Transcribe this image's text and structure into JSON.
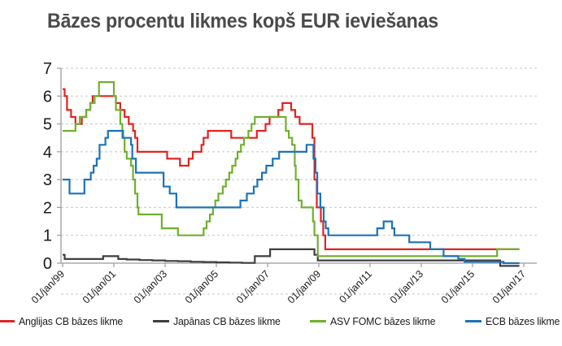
{
  "title": "Bāzes procentu likmes kopš EUR ieviešanas",
  "colors": {
    "england": "#e02421",
    "japan": "#3f3f3f",
    "us": "#70b02e",
    "ecb": "#1d72b8",
    "grid": "#c8c8c8",
    "axis": "#9b9b9b",
    "tick_label": "#1a1a1a",
    "title": "#4a4a4a"
  },
  "chart_data": {
    "type": "line",
    "step": true,
    "title": "Bāzes procentu likmes kopš EUR ieviešanas",
    "xlabel": "",
    "ylabel": "",
    "grid": "horizontal-dashed",
    "legend_position": "bottom",
    "x_axis": {
      "tick_labels": [
        "01/jan/99",
        "01/jan/01",
        "01/jan/03",
        "01/jan/05",
        "01/jan/07",
        "01/jan/09",
        "01/jan/11",
        "01/jan/13",
        "01/jan/15",
        "01/jan/17"
      ],
      "tick_years": [
        1999,
        2001,
        2003,
        2005,
        2007,
        2009,
        2011,
        2013,
        2015,
        2017
      ],
      "range": [
        1999,
        2017.5
      ]
    },
    "y_axis": {
      "ticks": [
        0,
        1,
        2,
        3,
        4,
        5,
        6,
        7
      ],
      "range": [
        0,
        7
      ]
    },
    "x_end": 2016.83,
    "series": [
      {
        "name": "Anglijas CB bāzes likme",
        "color_key": "england",
        "color": "#e02421",
        "points": [
          [
            1999.0,
            6.25
          ],
          [
            1999.08,
            6.0
          ],
          [
            1999.17,
            5.5
          ],
          [
            1999.33,
            5.25
          ],
          [
            1999.5,
            5.0
          ],
          [
            1999.75,
            5.25
          ],
          [
            1999.92,
            5.5
          ],
          [
            2000.08,
            5.75
          ],
          [
            2000.17,
            6.0
          ],
          [
            2001.08,
            5.75
          ],
          [
            2001.25,
            5.5
          ],
          [
            2001.42,
            5.25
          ],
          [
            2001.58,
            5.0
          ],
          [
            2001.75,
            4.75
          ],
          [
            2001.83,
            4.5
          ],
          [
            2001.92,
            4.0
          ],
          [
            2003.08,
            3.75
          ],
          [
            2003.58,
            3.5
          ],
          [
            2003.92,
            3.75
          ],
          [
            2004.08,
            4.0
          ],
          [
            2004.42,
            4.25
          ],
          [
            2004.5,
            4.5
          ],
          [
            2004.67,
            4.75
          ],
          [
            2005.58,
            4.5
          ],
          [
            2006.58,
            4.75
          ],
          [
            2006.92,
            5.0
          ],
          [
            2007.08,
            5.25
          ],
          [
            2007.42,
            5.5
          ],
          [
            2007.58,
            5.75
          ],
          [
            2007.92,
            5.5
          ],
          [
            2008.08,
            5.25
          ],
          [
            2008.25,
            5.0
          ],
          [
            2008.75,
            4.5
          ],
          [
            2008.83,
            3.0
          ],
          [
            2008.92,
            2.0
          ],
          [
            2009.08,
            1.5
          ],
          [
            2009.17,
            1.0
          ],
          [
            2009.25,
            0.5
          ]
        ]
      },
      {
        "name": "Japānas CB bāzes likme",
        "color_key": "japan",
        "color": "#3f3f3f",
        "points": [
          [
            1999.0,
            0.3
          ],
          [
            1999.08,
            0.15
          ],
          [
            2000.58,
            0.25
          ],
          [
            2001.17,
            0.15
          ],
          [
            2001.5,
            0.13
          ],
          [
            2002.0,
            0.11
          ],
          [
            2002.5,
            0.1
          ],
          [
            2003.0,
            0.08
          ],
          [
            2003.5,
            0.07
          ],
          [
            2004.0,
            0.05
          ],
          [
            2004.5,
            0.04
          ],
          [
            2005.0,
            0.03
          ],
          [
            2005.5,
            0.02
          ],
          [
            2006.0,
            0.01
          ],
          [
            2006.5,
            0.25
          ],
          [
            2007.1,
            0.5
          ],
          [
            2008.83,
            0.3
          ],
          [
            2008.96,
            0.1
          ],
          [
            2016.08,
            -0.1
          ]
        ]
      },
      {
        "name": "ASV FOMC bāzes likme",
        "color_key": "us",
        "color": "#70b02e",
        "points": [
          [
            1999.0,
            4.75
          ],
          [
            1999.5,
            5.0
          ],
          [
            1999.67,
            5.25
          ],
          [
            1999.92,
            5.5
          ],
          [
            2000.08,
            5.75
          ],
          [
            2000.25,
            6.0
          ],
          [
            2000.42,
            6.5
          ],
          [
            2001.0,
            6.0
          ],
          [
            2001.08,
            5.5
          ],
          [
            2001.25,
            5.0
          ],
          [
            2001.33,
            4.5
          ],
          [
            2001.42,
            4.0
          ],
          [
            2001.5,
            3.75
          ],
          [
            2001.67,
            3.5
          ],
          [
            2001.75,
            3.0
          ],
          [
            2001.83,
            2.5
          ],
          [
            2001.92,
            2.0
          ],
          [
            2001.96,
            1.75
          ],
          [
            2002.87,
            1.25
          ],
          [
            2003.5,
            1.0
          ],
          [
            2004.5,
            1.25
          ],
          [
            2004.62,
            1.5
          ],
          [
            2004.75,
            1.75
          ],
          [
            2004.87,
            2.0
          ],
          [
            2004.96,
            2.25
          ],
          [
            2005.08,
            2.5
          ],
          [
            2005.25,
            2.75
          ],
          [
            2005.37,
            3.0
          ],
          [
            2005.5,
            3.25
          ],
          [
            2005.62,
            3.5
          ],
          [
            2005.75,
            3.75
          ],
          [
            2005.83,
            4.0
          ],
          [
            2005.96,
            4.25
          ],
          [
            2006.08,
            4.5
          ],
          [
            2006.25,
            4.75
          ],
          [
            2006.37,
            5.0
          ],
          [
            2006.5,
            5.25
          ],
          [
            2007.71,
            4.75
          ],
          [
            2007.83,
            4.5
          ],
          [
            2007.96,
            4.25
          ],
          [
            2008.06,
            3.5
          ],
          [
            2008.1,
            3.0
          ],
          [
            2008.21,
            2.25
          ],
          [
            2008.33,
            2.0
          ],
          [
            2008.77,
            1.5
          ],
          [
            2008.83,
            1.0
          ],
          [
            2008.96,
            0.25
          ],
          [
            2015.96,
            0.5
          ]
        ]
      },
      {
        "name": "ECB bāzes likme",
        "color_key": "ecb",
        "color": "#1d72b8",
        "points": [
          [
            1999.0,
            3.0
          ],
          [
            1999.27,
            2.5
          ],
          [
            1999.85,
            3.0
          ],
          [
            2000.1,
            3.25
          ],
          [
            2000.21,
            3.5
          ],
          [
            2000.33,
            3.75
          ],
          [
            2000.44,
            4.25
          ],
          [
            2000.67,
            4.5
          ],
          [
            2000.77,
            4.75
          ],
          [
            2001.36,
            4.5
          ],
          [
            2001.67,
            4.25
          ],
          [
            2001.72,
            3.75
          ],
          [
            2001.86,
            3.25
          ],
          [
            2002.94,
            2.75
          ],
          [
            2003.18,
            2.5
          ],
          [
            2003.44,
            2.0
          ],
          [
            2005.94,
            2.25
          ],
          [
            2006.19,
            2.5
          ],
          [
            2006.46,
            2.75
          ],
          [
            2006.6,
            3.0
          ],
          [
            2006.78,
            3.25
          ],
          [
            2006.95,
            3.5
          ],
          [
            2007.2,
            3.75
          ],
          [
            2007.45,
            4.0
          ],
          [
            2008.52,
            4.25
          ],
          [
            2008.79,
            3.75
          ],
          [
            2008.87,
            3.25
          ],
          [
            2008.94,
            2.5
          ],
          [
            2009.06,
            2.0
          ],
          [
            2009.19,
            1.5
          ],
          [
            2009.27,
            1.25
          ],
          [
            2009.37,
            1.0
          ],
          [
            2011.28,
            1.25
          ],
          [
            2011.53,
            1.5
          ],
          [
            2011.86,
            1.25
          ],
          [
            2011.95,
            1.0
          ],
          [
            2012.53,
            0.75
          ],
          [
            2013.35,
            0.5
          ],
          [
            2013.87,
            0.25
          ],
          [
            2014.44,
            0.15
          ],
          [
            2014.69,
            0.05
          ],
          [
            2016.21,
            0.0
          ]
        ]
      }
    ]
  },
  "legend": {
    "items": [
      {
        "label": "Anglijas CB bāzes likme",
        "color": "#e02421"
      },
      {
        "label": "Japānas CB bāzes likme",
        "color": "#3f3f3f"
      },
      {
        "label": "ASV FOMC bāzes likme",
        "color": "#70b02e"
      },
      {
        "label": "ECB bāzes likme",
        "color": "#1d72b8"
      }
    ]
  }
}
